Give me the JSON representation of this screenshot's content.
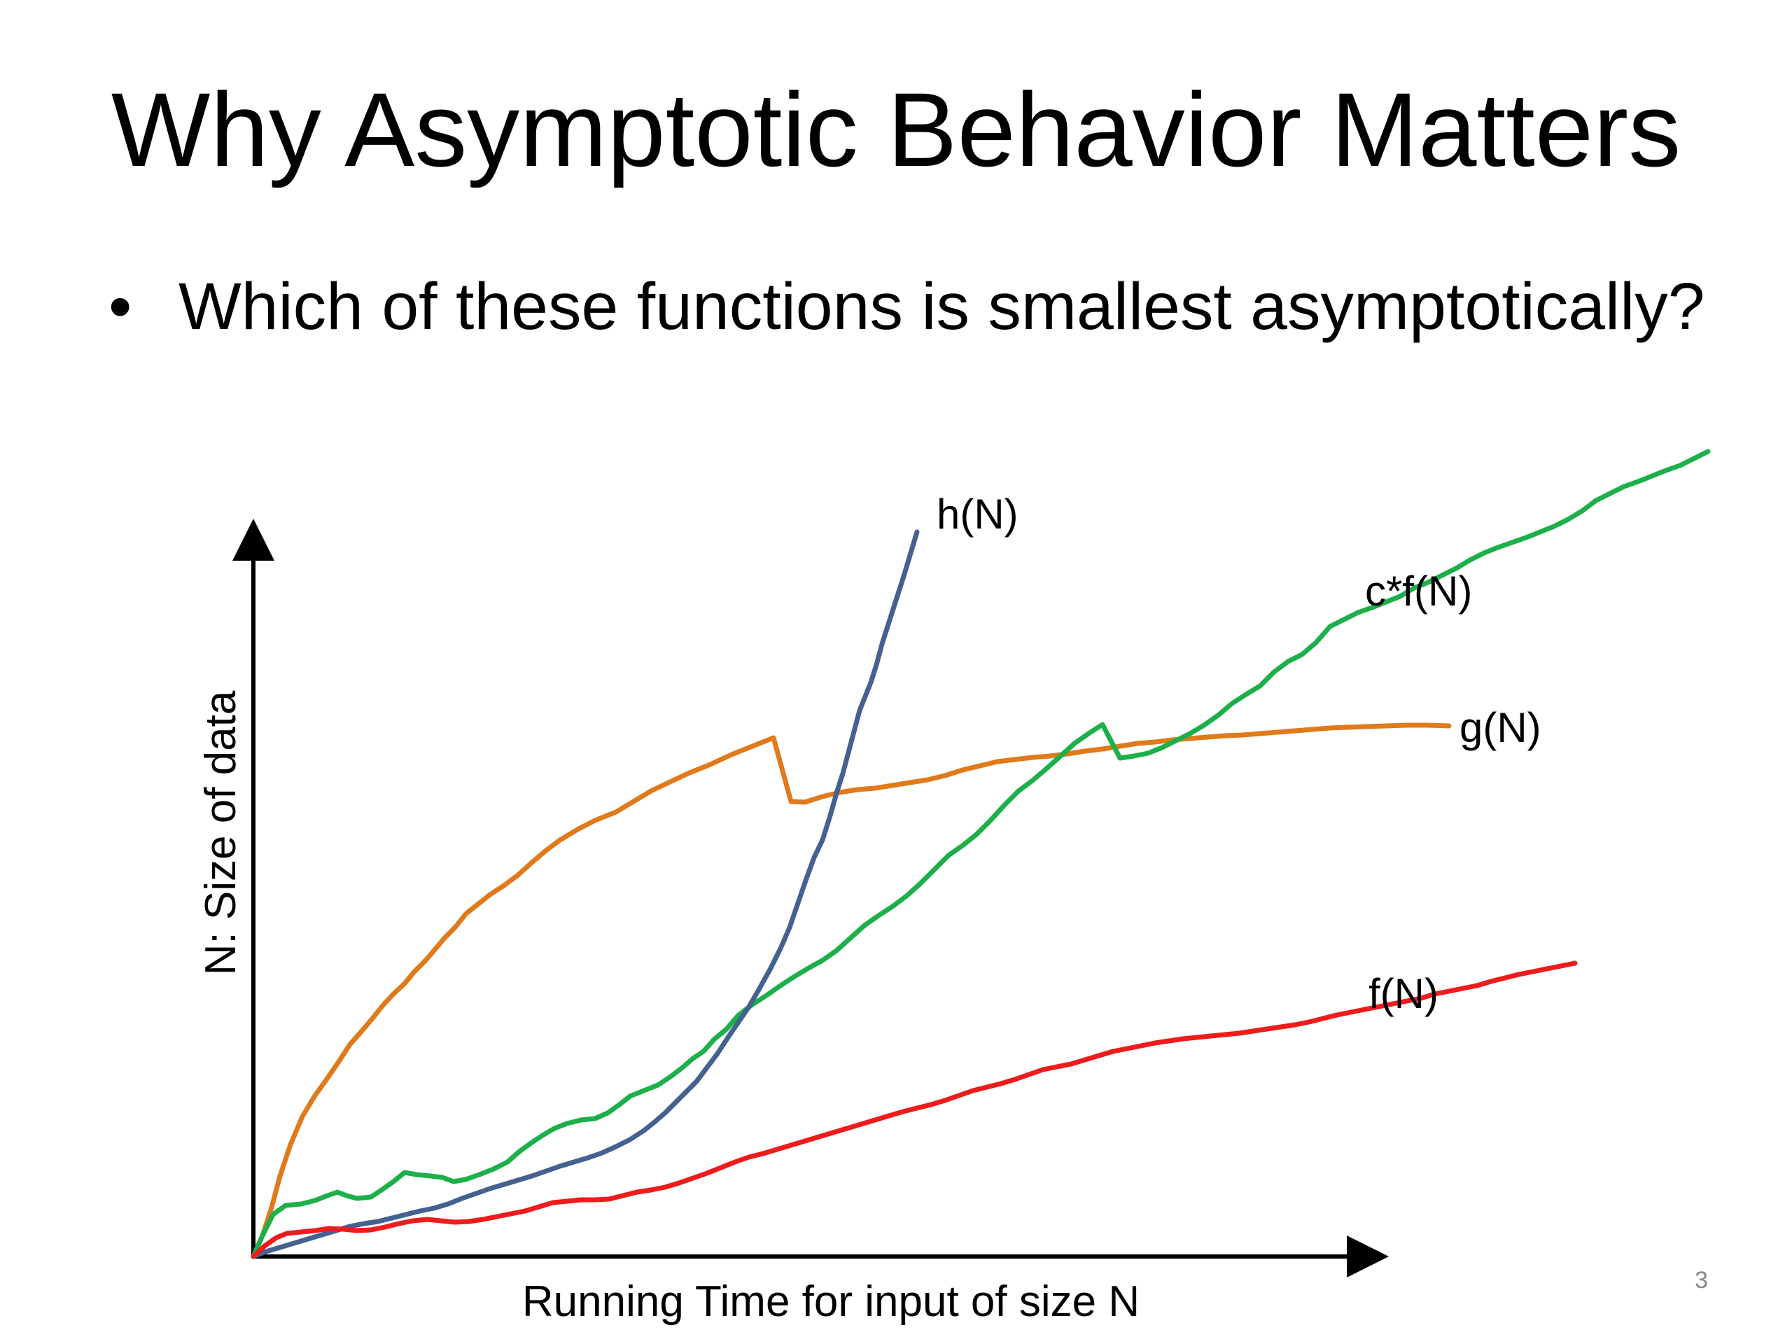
{
  "slide": {
    "title": "Why Asymptotic Behavior Matters",
    "bullet_marker": "•",
    "bullet_text": "Which of these functions is smallest asymptotically?",
    "slide_number": "3"
  },
  "chart_data": {
    "type": "line",
    "title": "",
    "xlabel": "Running Time for input of size N",
    "ylabel": "N: Size of data",
    "grid": false,
    "legend": "none (curves labeled directly at their ends)",
    "series": [
      {
        "name": "h(N)",
        "color": "#44618F",
        "shape": "slow start then steep exponential rise"
      },
      {
        "name": "c*f(N)",
        "color": "#1DB04A",
        "shape": "roughly linear, steeper than f(N)"
      },
      {
        "name": "g(N)",
        "color": "#E07A1A",
        "shape": "fast initial rise then flattening (logarithmic)"
      },
      {
        "name": "f(N)",
        "color": "#EE1C1C",
        "shape": "roughly linear, lowest slope"
      }
    ]
  }
}
